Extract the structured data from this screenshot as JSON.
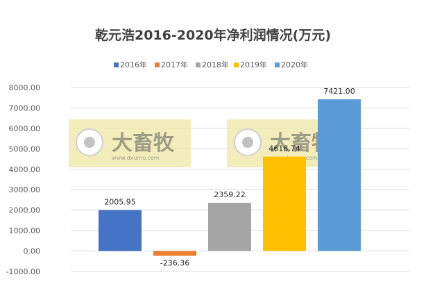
{
  "chart_data": {
    "type": "bar",
    "title": "乾元浩2016-2020年净利润情况(万元)",
    "categories": [
      "2016年",
      "2017年",
      "2018年",
      "2019年",
      "2020年"
    ],
    "values": [
      2005.95,
      -236.36,
      2359.22,
      4618.74,
      7421.0
    ],
    "value_labels": [
      "2005.95",
      "-236.36",
      "2359.22",
      "4618.74",
      "7421.00"
    ],
    "colors": [
      "#4472C4",
      "#ED7D31",
      "#A5A5A5",
      "#FFC000",
      "#5B9BD5"
    ],
    "ylim": [
      -1000,
      8000
    ],
    "yticks": [
      -1000,
      0,
      1000,
      2000,
      3000,
      4000,
      5000,
      6000,
      7000,
      8000
    ],
    "ytick_labels": [
      "-1000.00",
      "0.00",
      "1000.00",
      "2000.00",
      "3000.00",
      "4000.00",
      "5000.00",
      "6000.00",
      "7000.00",
      "8000.00"
    ],
    "grid": true,
    "legend_position": "top"
  },
  "watermark": {
    "brand": "大畜牧",
    "url": "www.dxumu.com",
    "count": 2
  }
}
